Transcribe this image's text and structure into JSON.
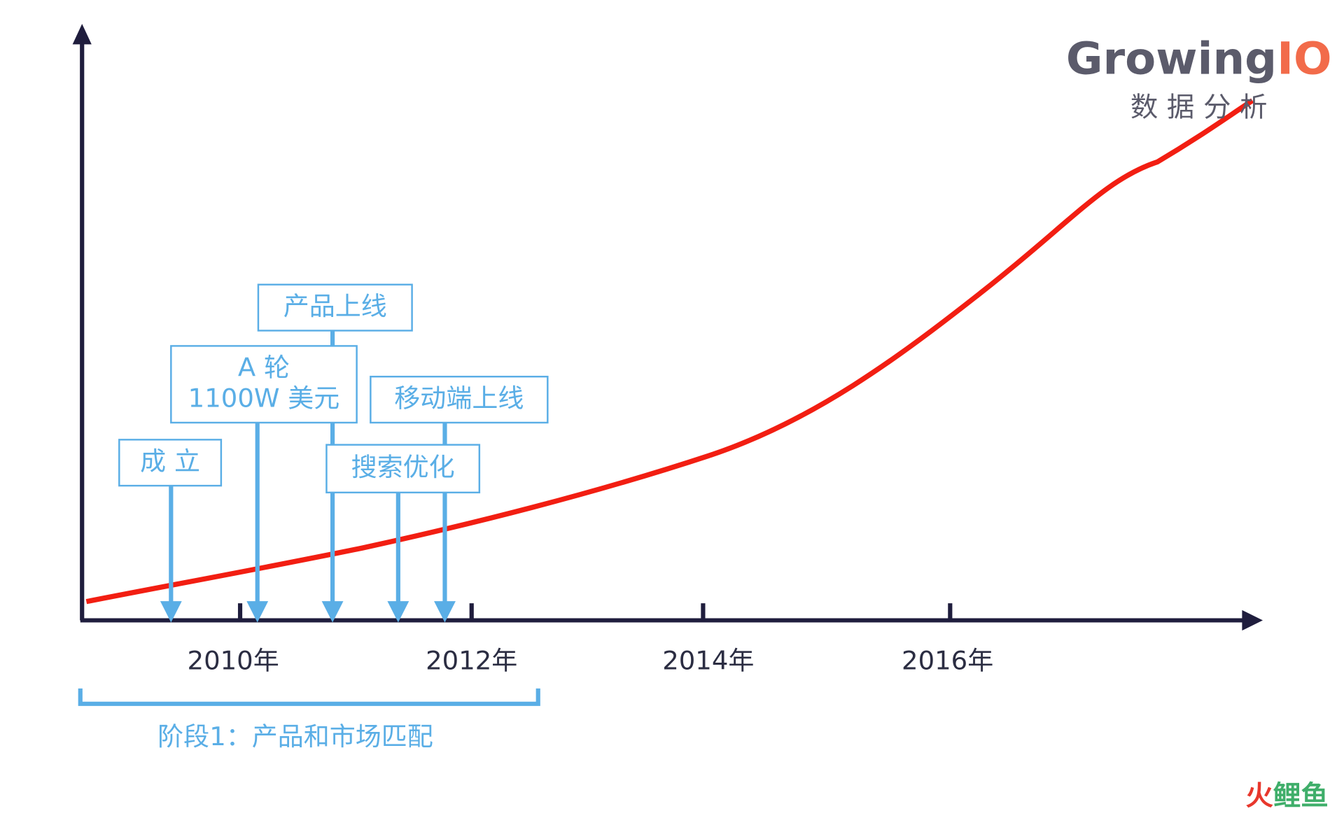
{
  "logo": {
    "brand": [
      "Growing",
      "IO"
    ],
    "tagline": "数 据 分 析"
  },
  "axis": {
    "ticks": [
      "2010年",
      "2012年",
      "2014年",
      "2016年"
    ]
  },
  "events": [
    {
      "lines": [
        "成 立"
      ]
    },
    {
      "lines": [
        "A 轮",
        "1100W 美元"
      ]
    },
    {
      "lines": [
        "产品上线"
      ]
    },
    {
      "lines": [
        "移动端上线"
      ]
    },
    {
      "lines": [
        "搜索优化"
      ]
    }
  ],
  "stage": {
    "label": "阶段1：产品和市场匹配"
  },
  "watermark": [
    "火",
    "鲤鱼"
  ]
}
